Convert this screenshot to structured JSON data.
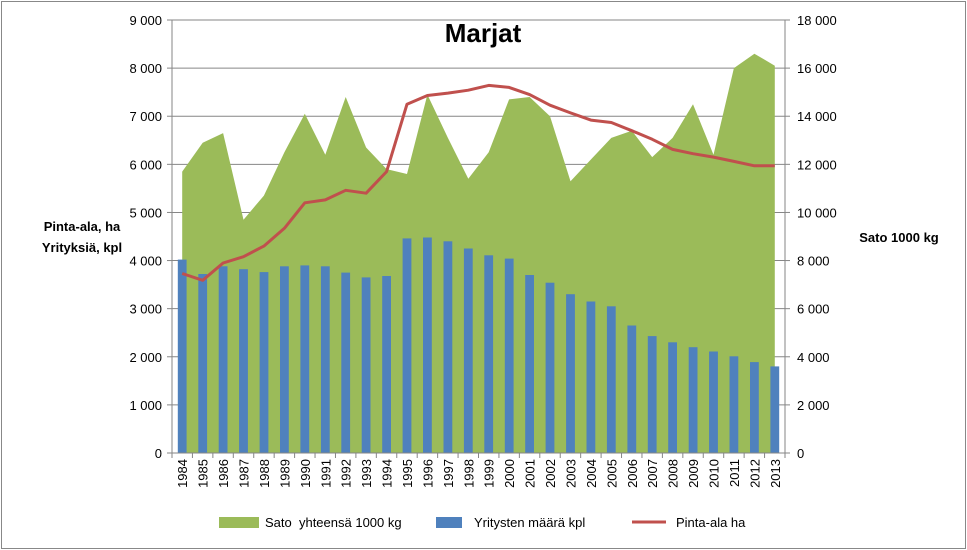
{
  "chart_data": {
    "type": "bar",
    "title": "Marjat",
    "ylabel_left": [
      "Pinta-ala, ha",
      "Yrityksiä, kpl"
    ],
    "ylabel_right": "Sato 1000 kg",
    "ylim_left": [
      0,
      9000
    ],
    "ylim_right": [
      0,
      18000
    ],
    "yticks_left": [
      "0",
      "1 000",
      "2 000",
      "3 000",
      "4 000",
      "5 000",
      "6 000",
      "7 000",
      "8 000",
      "9 000"
    ],
    "yticks_right": [
      "0",
      "2 000",
      "4 000",
      "6 000",
      "8 000",
      "10 000",
      "12 000",
      "14 000",
      "16 000",
      "18 000"
    ],
    "grid": true,
    "legend_position": "bottom",
    "categories": [
      "1984",
      "1985",
      "1986",
      "1987",
      "1988",
      "1989",
      "1990",
      "1991",
      "1992",
      "1993",
      "1994",
      "1995",
      "1996",
      "1997",
      "1998",
      "1999",
      "2000",
      "2001",
      "2002",
      "2003",
      "2004",
      "2005",
      "2006",
      "2007",
      "2008",
      "2009",
      "2010",
      "2011",
      "2012",
      "2013"
    ],
    "series": [
      {
        "name": "Sato  yhteensä 1000 kg",
        "type": "area",
        "axis": "right",
        "color": "#9BBB59",
        "values": [
          11700,
          12900,
          13300,
          9700,
          10700,
          12500,
          14100,
          12400,
          14800,
          12700,
          11800,
          11600,
          14900,
          13100,
          11400,
          12500,
          14700,
          14800,
          14000,
          11300,
          12200,
          13100,
          13400,
          12300,
          13100,
          14500,
          12400,
          16000,
          16600,
          16100
        ]
      },
      {
        "name": "Yritysten määrä kpl",
        "type": "bar",
        "axis": "left",
        "color": "#4F81BD",
        "values": [
          4020,
          3720,
          3880,
          3820,
          3760,
          3880,
          3900,
          3880,
          3750,
          3650,
          3680,
          4460,
          4480,
          4400,
          4250,
          4110,
          4040,
          3700,
          3540,
          3300,
          3150,
          3050,
          2650,
          2430,
          2300,
          2200,
          2110,
          2010,
          1890,
          1800
        ]
      },
      {
        "name": "Pinta-ala ha",
        "type": "line",
        "axis": "left",
        "color": "#C0504D",
        "values": [
          3730,
          3590,
          3950,
          4080,
          4300,
          4670,
          5200,
          5260,
          5460,
          5400,
          5850,
          7250,
          7430,
          7480,
          7540,
          7640,
          7600,
          7450,
          7230,
          7070,
          6920,
          6870,
          6700,
          6520,
          6310,
          6220,
          6150,
          6060,
          5970,
          5970
        ]
      }
    ]
  }
}
